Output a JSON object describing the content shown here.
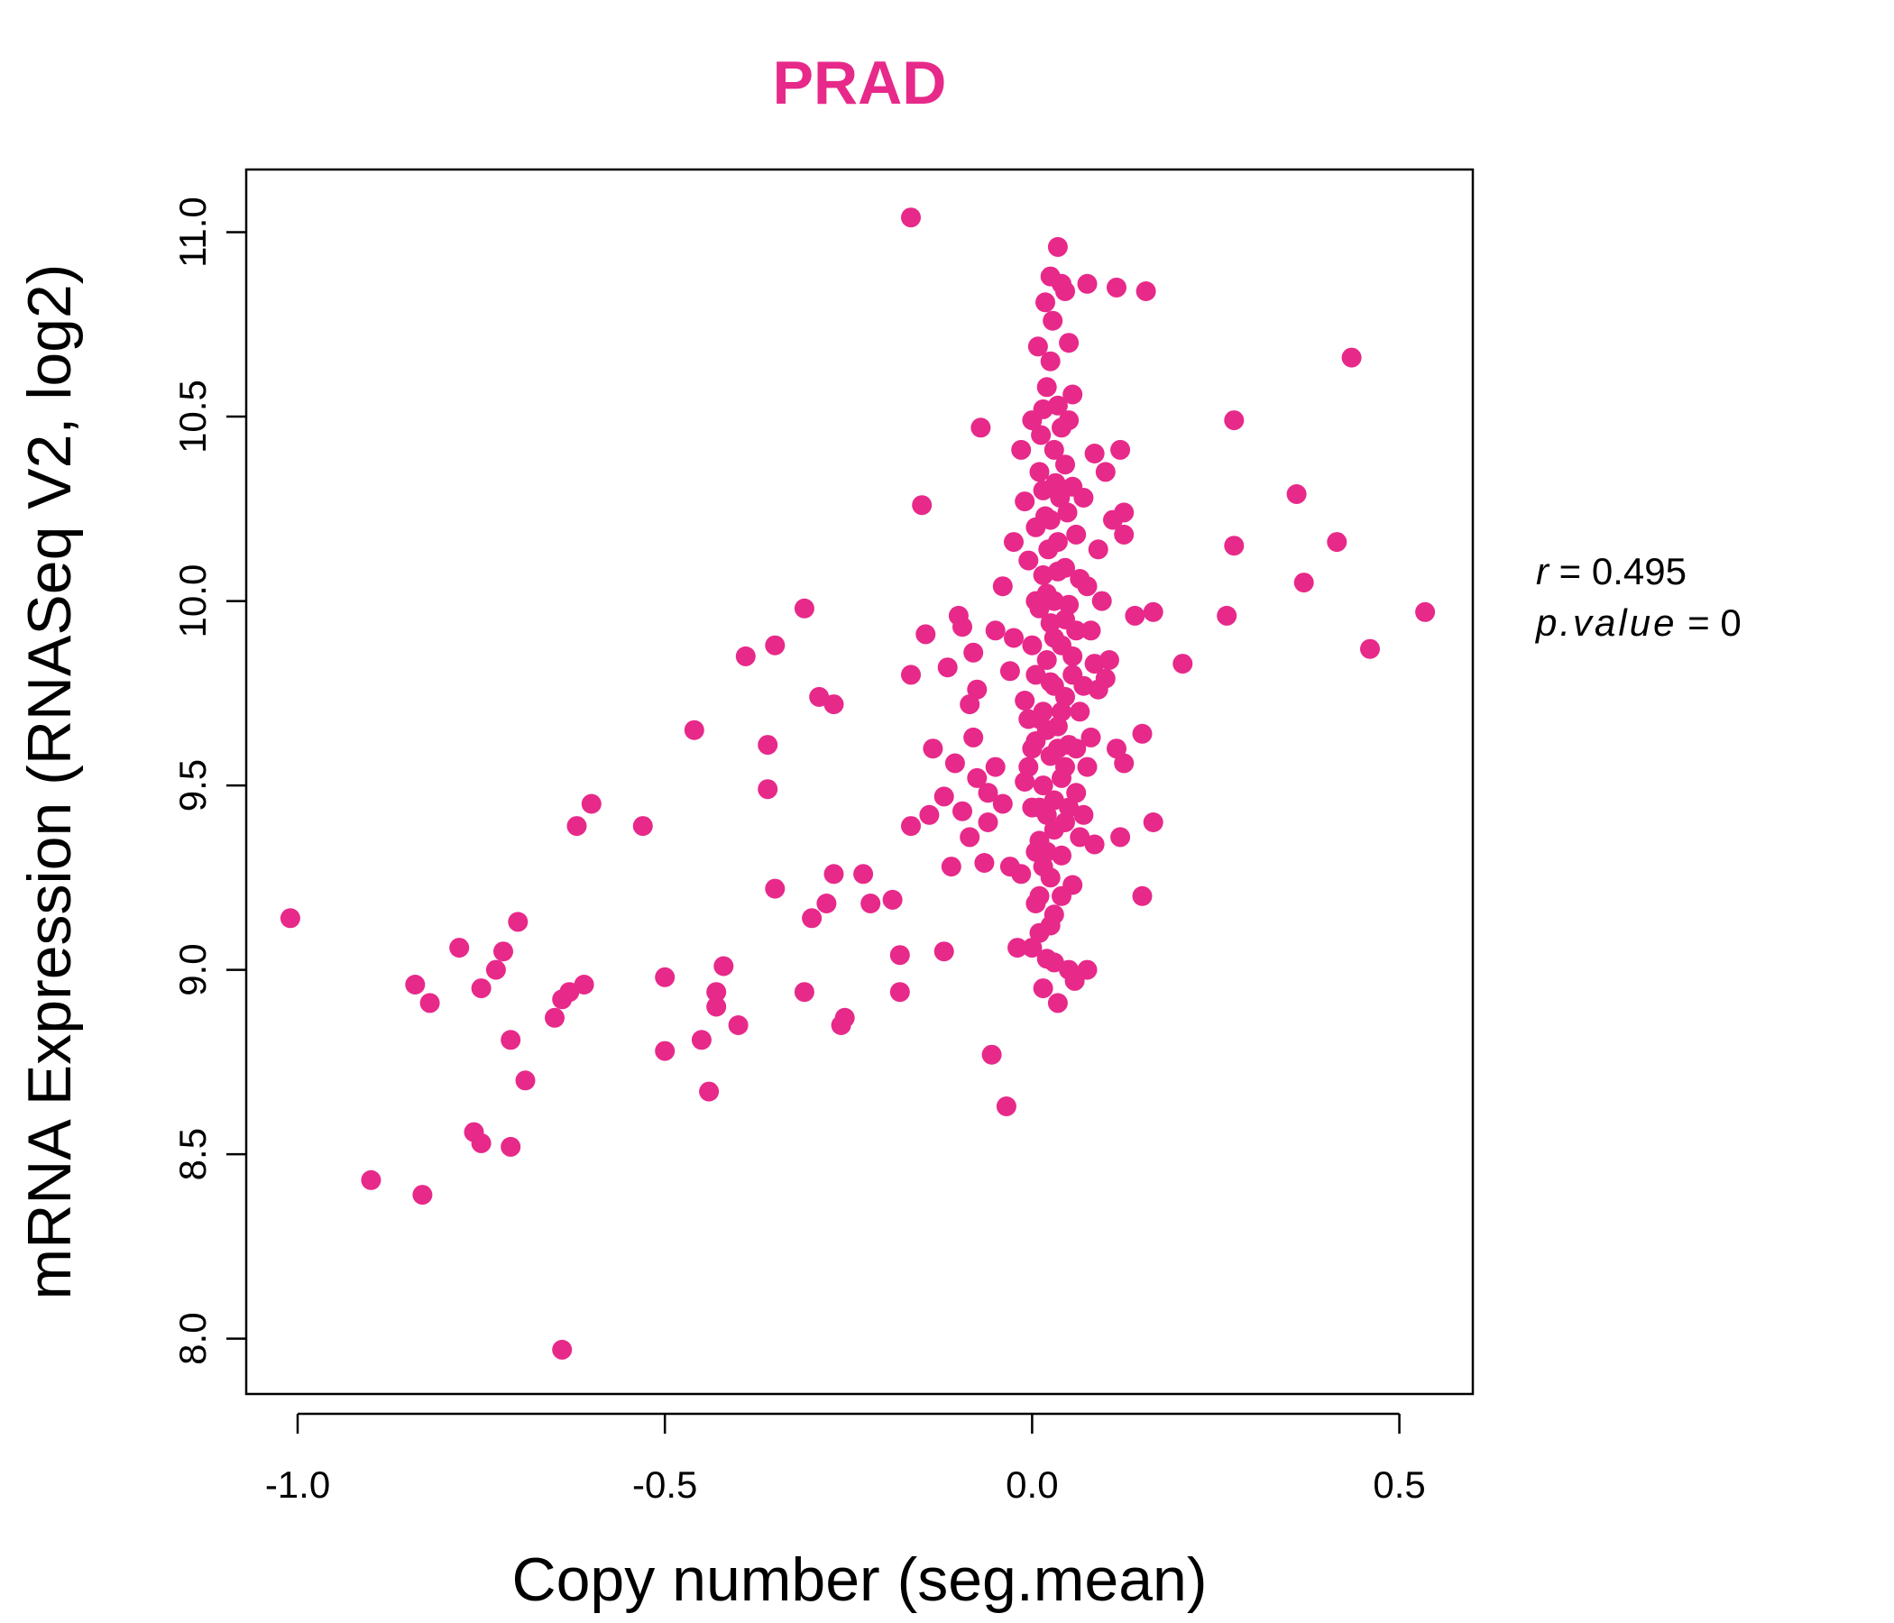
{
  "chart_data": {
    "type": "scatter",
    "title": "PRAD",
    "xlabel": "Copy number (seg.mean)",
    "ylabel": "mRNA Expression (RNASeq V2, log2)",
    "xlim": [
      -1.07,
      0.6
    ],
    "ylim": [
      7.85,
      11.17
    ],
    "x_ticks": [
      -1.0,
      -0.5,
      0.0,
      0.5
    ],
    "x_tick_labels": [
      "-1.0",
      "-0.5",
      "0.0",
      "0.5"
    ],
    "y_ticks": [
      8.0,
      8.5,
      9.0,
      9.5,
      10.0,
      10.5,
      11.0
    ],
    "y_tick_labels": [
      "8.0",
      "8.5",
      "9.0",
      "9.5",
      "10.0",
      "10.5",
      "11.0"
    ],
    "grid": false,
    "point_color": "#E7298A",
    "stats": {
      "r_label": "r",
      "r_value": "0.495",
      "p_label": "p.value",
      "p_value": "0"
    },
    "points": [
      [
        -1.01,
        9.14
      ],
      [
        -0.9,
        8.43
      ],
      [
        -0.84,
        8.96
      ],
      [
        -0.83,
        8.39
      ],
      [
        -0.82,
        8.91
      ],
      [
        -0.78,
        9.06
      ],
      [
        -0.76,
        8.56
      ],
      [
        -0.75,
        8.95
      ],
      [
        -0.75,
        8.53
      ],
      [
        -0.73,
        9.0
      ],
      [
        -0.72,
        9.05
      ],
      [
        -0.71,
        8.81
      ],
      [
        -0.71,
        8.52
      ],
      [
        -0.7,
        9.13
      ],
      [
        -0.69,
        8.7
      ],
      [
        -0.65,
        8.87
      ],
      [
        -0.64,
        8.92
      ],
      [
        -0.64,
        7.97
      ],
      [
        -0.63,
        8.94
      ],
      [
        -0.62,
        9.39
      ],
      [
        -0.61,
        8.96
      ],
      [
        -0.6,
        9.45
      ],
      [
        -0.53,
        9.39
      ],
      [
        -0.5,
        8.98
      ],
      [
        -0.5,
        8.78
      ],
      [
        -0.46,
        9.65
      ],
      [
        -0.45,
        8.81
      ],
      [
        -0.44,
        8.67
      ],
      [
        -0.43,
        8.94
      ],
      [
        -0.43,
        8.9
      ],
      [
        -0.42,
        9.01
      ],
      [
        -0.4,
        8.85
      ],
      [
        -0.39,
        9.85
      ],
      [
        -0.36,
        9.61
      ],
      [
        -0.36,
        9.49
      ],
      [
        -0.35,
        9.88
      ],
      [
        -0.35,
        9.22
      ],
      [
        -0.31,
        9.98
      ],
      [
        -0.31,
        8.94
      ],
      [
        -0.3,
        9.14
      ],
      [
        -0.29,
        9.74
      ],
      [
        -0.28,
        9.18
      ],
      [
        -0.27,
        9.72
      ],
      [
        -0.27,
        9.26
      ],
      [
        -0.26,
        8.85
      ],
      [
        -0.255,
        8.87
      ],
      [
        -0.23,
        9.26
      ],
      [
        -0.22,
        9.18
      ],
      [
        -0.19,
        9.19
      ],
      [
        -0.18,
        9.04
      ],
      [
        -0.18,
        8.94
      ],
      [
        -0.165,
        11.04
      ],
      [
        -0.165,
        9.8
      ],
      [
        -0.165,
        9.39
      ],
      [
        -0.15,
        10.26
      ],
      [
        -0.145,
        9.91
      ],
      [
        -0.14,
        9.42
      ],
      [
        -0.135,
        9.6
      ],
      [
        -0.12,
        9.47
      ],
      [
        -0.12,
        9.05
      ],
      [
        -0.115,
        9.82
      ],
      [
        -0.11,
        9.28
      ],
      [
        -0.105,
        9.56
      ],
      [
        -0.1,
        9.96
      ],
      [
        -0.095,
        9.93
      ],
      [
        -0.095,
        9.43
      ],
      [
        -0.085,
        9.72
      ],
      [
        -0.085,
        9.36
      ],
      [
        -0.08,
        9.86
      ],
      [
        -0.08,
        9.63
      ],
      [
        -0.075,
        9.76
      ],
      [
        -0.075,
        9.52
      ],
      [
        -0.07,
        10.47
      ],
      [
        -0.065,
        9.29
      ],
      [
        -0.06,
        9.48
      ],
      [
        -0.06,
        9.4
      ],
      [
        -0.055,
        8.77
      ],
      [
        -0.05,
        9.92
      ],
      [
        -0.05,
        9.55
      ],
      [
        -0.04,
        10.04
      ],
      [
        -0.04,
        9.45
      ],
      [
        -0.03,
        9.81
      ],
      [
        -0.03,
        9.28
      ],
      [
        -0.035,
        8.63
      ],
      [
        -0.025,
        10.16
      ],
      [
        -0.025,
        9.9
      ],
      [
        -0.02,
        9.06
      ],
      [
        -0.015,
        10.41
      ],
      [
        -0.015,
        9.26
      ],
      [
        -0.01,
        10.27
      ],
      [
        -0.01,
        9.73
      ],
      [
        -0.01,
        9.51
      ],
      [
        -0.005,
        10.11
      ],
      [
        -0.005,
        9.55
      ],
      [
        0.0,
        10.49
      ],
      [
        0.0,
        9.88
      ],
      [
        0.0,
        9.44
      ],
      [
        0.005,
        10.2
      ],
      [
        0.005,
        9.62
      ],
      [
        0.005,
        9.18
      ],
      [
        0.008,
        10.69
      ],
      [
        0.01,
        10.35
      ],
      [
        0.01,
        9.98
      ],
      [
        0.01,
        9.35
      ],
      [
        0.01,
        9.1
      ],
      [
        0.012,
        10.45
      ],
      [
        0.015,
        10.52
      ],
      [
        0.015,
        10.07
      ],
      [
        0.015,
        9.7
      ],
      [
        0.015,
        8.95
      ],
      [
        0.018,
        10.81
      ],
      [
        0.018,
        10.23
      ],
      [
        0.02,
        10.58
      ],
      [
        0.02,
        9.84
      ],
      [
        0.02,
        9.42
      ],
      [
        0.02,
        9.03
      ],
      [
        0.022,
        10.14
      ],
      [
        0.025,
        10.65
      ],
      [
        0.025,
        10.88
      ],
      [
        0.025,
        9.94
      ],
      [
        0.025,
        9.58
      ],
      [
        0.025,
        9.25
      ],
      [
        0.028,
        10.76
      ],
      [
        0.03,
        10.41
      ],
      [
        0.03,
        10.0
      ],
      [
        0.03,
        9.77
      ],
      [
        0.03,
        9.46
      ],
      [
        0.03,
        9.15
      ],
      [
        0.032,
        10.32
      ],
      [
        0.035,
        10.96
      ],
      [
        0.035,
        10.53
      ],
      [
        0.035,
        10.16
      ],
      [
        0.035,
        9.66
      ],
      [
        0.035,
        8.91
      ],
      [
        0.038,
        10.28
      ],
      [
        0.04,
        10.86
      ],
      [
        0.04,
        10.47
      ],
      [
        0.04,
        9.88
      ],
      [
        0.04,
        9.52
      ],
      [
        0.04,
        9.31
      ],
      [
        0.045,
        10.84
      ],
      [
        0.045,
        10.37
      ],
      [
        0.045,
        10.09
      ],
      [
        0.045,
        9.74
      ],
      [
        0.045,
        9.4
      ],
      [
        0.048,
        10.24
      ],
      [
        0.05,
        10.7
      ],
      [
        0.05,
        10.49
      ],
      [
        0.05,
        9.99
      ],
      [
        0.05,
        9.61
      ],
      [
        0.05,
        9.0
      ],
      [
        0.055,
        10.56
      ],
      [
        0.055,
        10.31
      ],
      [
        0.055,
        9.8
      ],
      [
        0.055,
        9.23
      ],
      [
        0.058,
        8.97
      ],
      [
        0.06,
        10.18
      ],
      [
        0.06,
        9.92
      ],
      [
        0.06,
        9.48
      ],
      [
        0.065,
        10.06
      ],
      [
        0.065,
        9.7
      ],
      [
        0.065,
        9.36
      ],
      [
        0.07,
        10.28
      ],
      [
        0.07,
        9.77
      ],
      [
        0.07,
        9.42
      ],
      [
        0.075,
        10.86
      ],
      [
        0.075,
        10.04
      ],
      [
        0.075,
        9.55
      ],
      [
        0.075,
        9.0
      ],
      [
        0.08,
        9.92
      ],
      [
        0.08,
        9.63
      ],
      [
        0.085,
        10.4
      ],
      [
        0.085,
        9.83
      ],
      [
        0.085,
        9.34
      ],
      [
        0.09,
        10.14
      ],
      [
        0.09,
        9.76
      ],
      [
        0.095,
        10.0
      ],
      [
        0.1,
        10.35
      ],
      [
        0.1,
        9.79
      ],
      [
        0.105,
        9.84
      ],
      [
        0.11,
        10.22
      ],
      [
        0.115,
        10.85
      ],
      [
        0.115,
        9.6
      ],
      [
        0.12,
        10.41
      ],
      [
        0.12,
        9.36
      ],
      [
        0.125,
        10.24
      ],
      [
        0.125,
        10.18
      ],
      [
        0.125,
        9.56
      ],
      [
        0.14,
        9.96
      ],
      [
        0.15,
        9.64
      ],
      [
        0.15,
        9.2
      ],
      [
        0.155,
        10.84
      ],
      [
        0.165,
        9.97
      ],
      [
        0.165,
        9.4
      ],
      [
        0.205,
        9.83
      ],
      [
        0.265,
        9.96
      ],
      [
        0.275,
        10.15
      ],
      [
        0.275,
        10.49
      ],
      [
        0.36,
        10.29
      ],
      [
        0.37,
        10.05
      ],
      [
        0.415,
        10.16
      ],
      [
        0.435,
        10.66
      ],
      [
        0.46,
        9.87
      ],
      [
        0.535,
        9.97
      ],
      [
        0.0,
        9.06
      ],
      [
        0.01,
        9.2
      ],
      [
        0.02,
        9.32
      ],
      [
        0.015,
        9.5
      ],
      [
        0.02,
        9.65
      ],
      [
        0.025,
        9.78
      ],
      [
        0.03,
        9.9
      ],
      [
        0.02,
        10.02
      ],
      [
        0.01,
        9.68
      ],
      [
        0.005,
        9.8
      ],
      [
        0.03,
        9.38
      ],
      [
        0.035,
        9.6
      ],
      [
        0.04,
        9.7
      ],
      [
        0.045,
        9.55
      ],
      [
        0.04,
        9.2
      ],
      [
        0.025,
        9.12
      ],
      [
        0.015,
        9.28
      ],
      [
        0.01,
        9.44
      ],
      [
        0.005,
        9.32
      ],
      [
        0.0,
        9.6
      ],
      [
        0.03,
        9.02
      ],
      [
        0.05,
        9.44
      ],
      [
        0.06,
        9.6
      ],
      [
        0.055,
        9.85
      ],
      [
        0.045,
        9.95
      ],
      [
        0.035,
        10.08
      ],
      [
        0.025,
        10.22
      ],
      [
        0.015,
        10.3
      ],
      [
        0.005,
        10.0
      ],
      [
        -0.005,
        9.68
      ]
    ]
  }
}
